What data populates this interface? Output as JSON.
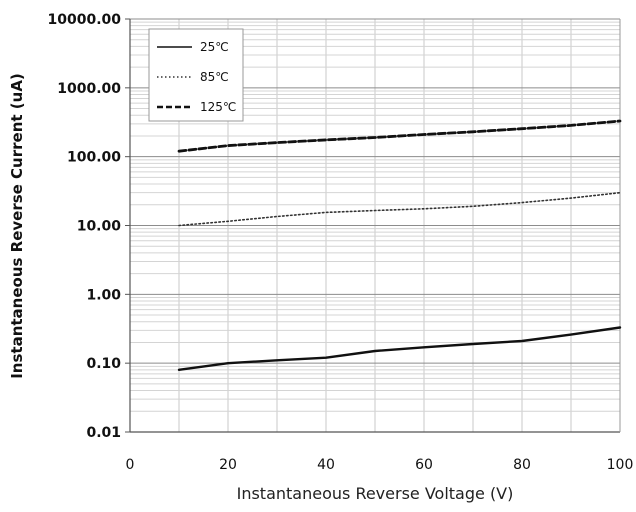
{
  "chart_data": {
    "type": "line",
    "title": "",
    "xlabel": "Instantaneous Reverse Voltage (V)",
    "ylabel": "Instantaneous Reverse Current (uA)",
    "xlim": [
      0,
      100
    ],
    "ylim": [
      0.01,
      10000
    ],
    "yscale": "log",
    "grid": true,
    "legend_position": "top-left",
    "x_ticks": [
      "0",
      "20",
      "40",
      "60",
      "80",
      "100"
    ],
    "y_ticks": [
      "0.01",
      "0.10",
      "1.00",
      "10.00",
      "100.00",
      "1000.00",
      "10000.00"
    ],
    "series": [
      {
        "name": "25℃",
        "line_style": "solid",
        "color": "#111111",
        "x": [
          10,
          20,
          30,
          40,
          50,
          60,
          70,
          80,
          90,
          100
        ],
        "y": [
          0.08,
          0.1,
          0.11,
          0.12,
          0.15,
          0.17,
          0.19,
          0.21,
          0.26,
          0.33
        ]
      },
      {
        "name": "85℃",
        "line_style": "dotted",
        "color": "#333333",
        "x": [
          10,
          20,
          30,
          40,
          50,
          60,
          70,
          80,
          90,
          100
        ],
        "y": [
          10,
          11.5,
          13.5,
          15.5,
          16.5,
          17.5,
          19,
          21.5,
          25,
          30
        ]
      },
      {
        "name": "125℃",
        "line_style": "dashed",
        "color": "#111111",
        "x": [
          10,
          20,
          30,
          40,
          50,
          60,
          70,
          80,
          90,
          100
        ],
        "y": [
          120,
          145,
          160,
          175,
          190,
          210,
          230,
          255,
          285,
          330
        ]
      }
    ]
  }
}
